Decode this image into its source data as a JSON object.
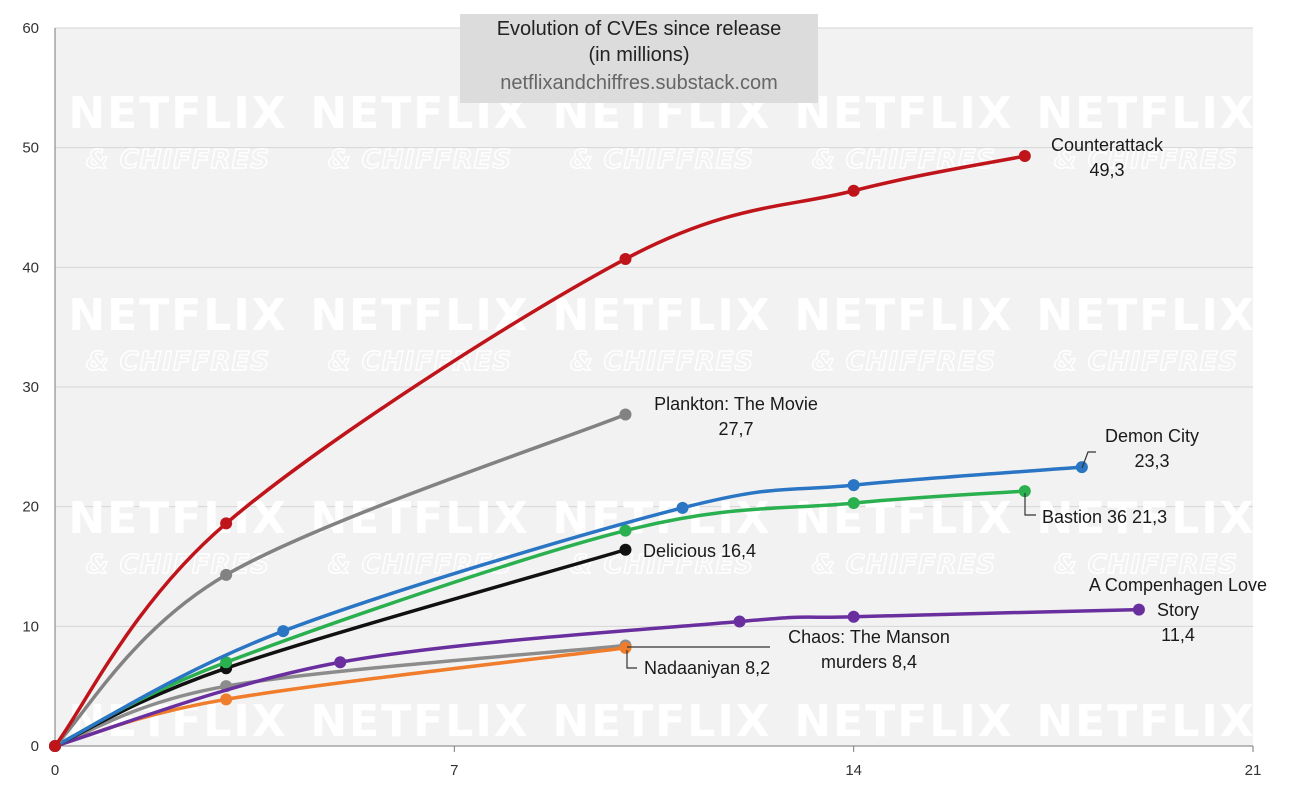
{
  "title_line1": "Evolution of CVEs since release",
  "title_line2": "(in millions)",
  "source": "netflixandchiffres.substack.com",
  "watermark_line1": "NETFLIX",
  "watermark_line2": "& CHIFFRES",
  "chart_data": {
    "type": "line",
    "xlim": [
      0,
      21
    ],
    "ylim": [
      0,
      60
    ],
    "x_ticks": [
      0,
      7,
      14,
      21
    ],
    "y_ticks": [
      0,
      10,
      20,
      30,
      40,
      50,
      60
    ],
    "grid": "horizontal",
    "series": [
      {
        "name": "Counterattack",
        "value_label": "49,3",
        "color": "#c0141b",
        "points": [
          [
            0,
            0
          ],
          [
            3,
            18.6
          ],
          [
            10,
            40.7
          ],
          [
            14,
            46.4
          ],
          [
            17,
            49.3
          ]
        ]
      },
      {
        "name": "Plankton: The Movie",
        "value_label": "27,7",
        "color": "#828282",
        "points": [
          [
            0,
            0
          ],
          [
            3,
            14.3
          ],
          [
            10,
            27.7
          ]
        ]
      },
      {
        "name": "Demon City",
        "value_label": "23,3",
        "color": "#2a76c4",
        "points": [
          [
            0,
            0
          ],
          [
            4,
            9.6
          ],
          [
            11,
            19.9
          ],
          [
            14,
            21.8
          ],
          [
            18,
            23.3
          ]
        ]
      },
      {
        "name": "Bastion 36",
        "value_label": "21,3",
        "color": "#2ab04f",
        "points": [
          [
            0,
            0
          ],
          [
            3,
            7.0
          ],
          [
            10,
            18.0
          ],
          [
            14,
            20.3
          ],
          [
            17,
            21.3
          ]
        ]
      },
      {
        "name": "Delicious",
        "value_label": "16,4",
        "color": "#111111",
        "points": [
          [
            0,
            0
          ],
          [
            3,
            6.5
          ],
          [
            10,
            16.4
          ]
        ]
      },
      {
        "name": "A Compenhagen Love Story",
        "value_label": "11,4",
        "color": "#6a2f9e",
        "points": [
          [
            0,
            0
          ],
          [
            5,
            7.0
          ],
          [
            12,
            10.4
          ],
          [
            14,
            10.8
          ],
          [
            19,
            11.4
          ]
        ]
      },
      {
        "name": "Chaos: The Manson murders",
        "value_label": "8,4",
        "color": "#8c8c8c",
        "points": [
          [
            0,
            0
          ],
          [
            3,
            5.0
          ],
          [
            10,
            8.4
          ]
        ]
      },
      {
        "name": "Nadaaniyan",
        "value_label": "8,2",
        "color": "#f07d2c",
        "points": [
          [
            0,
            0
          ],
          [
            3,
            3.9
          ],
          [
            10,
            8.2
          ]
        ]
      }
    ],
    "labels": [
      {
        "series": 0,
        "lines": [
          "Counterattack",
          "49,3"
        ]
      },
      {
        "series": 1,
        "lines": [
          "Plankton: The Movie",
          "27,7"
        ]
      },
      {
        "series": 2,
        "lines": [
          "Demon City",
          "23,3"
        ]
      },
      {
        "series": 3,
        "lines": [
          "Bastion 36 21,3"
        ]
      },
      {
        "series": 4,
        "lines": [
          "Delicious 16,4"
        ]
      },
      {
        "series": 5,
        "lines": [
          "A Compenhagen Love",
          "Story",
          "11,4"
        ]
      },
      {
        "series": 6,
        "lines": [
          "Chaos: The Manson",
          "murders 8,4"
        ]
      },
      {
        "series": 7,
        "lines": [
          "Nadaaniyan 8,2"
        ]
      }
    ]
  }
}
